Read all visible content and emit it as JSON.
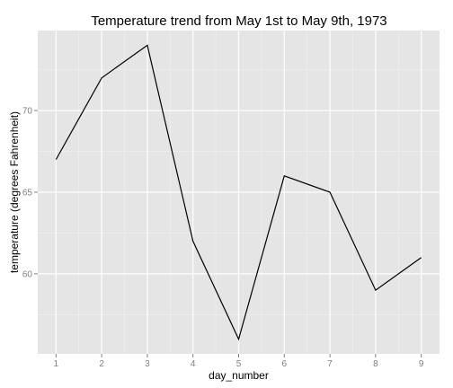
{
  "chart_data": {
    "type": "line",
    "title": "Temperature trend from May 1st to May 9th, 1973",
    "xlabel": "day_number",
    "ylabel": "temperature (degrees Fahrenheit)",
    "x": [
      1,
      2,
      3,
      4,
      5,
      6,
      7,
      8,
      9
    ],
    "series": [
      {
        "values": [
          67,
          72,
          74,
          62,
          56,
          66,
          65,
          59,
          61
        ]
      }
    ],
    "x_ticks": [
      "1",
      "2",
      "3",
      "4",
      "5",
      "6",
      "7",
      "8",
      "9"
    ],
    "y_ticks": [
      "60",
      "65",
      "70"
    ],
    "xlim": [
      0.6,
      9.4
    ],
    "ylim": [
      55.1,
      74.9
    ],
    "grid": true,
    "colors": {
      "panel_background": "#e5e5e5",
      "grid_major": "#ffffff",
      "grid_minor": "#f2f2f2",
      "line": "#000000",
      "tick_text": "#7f7f7f"
    }
  }
}
